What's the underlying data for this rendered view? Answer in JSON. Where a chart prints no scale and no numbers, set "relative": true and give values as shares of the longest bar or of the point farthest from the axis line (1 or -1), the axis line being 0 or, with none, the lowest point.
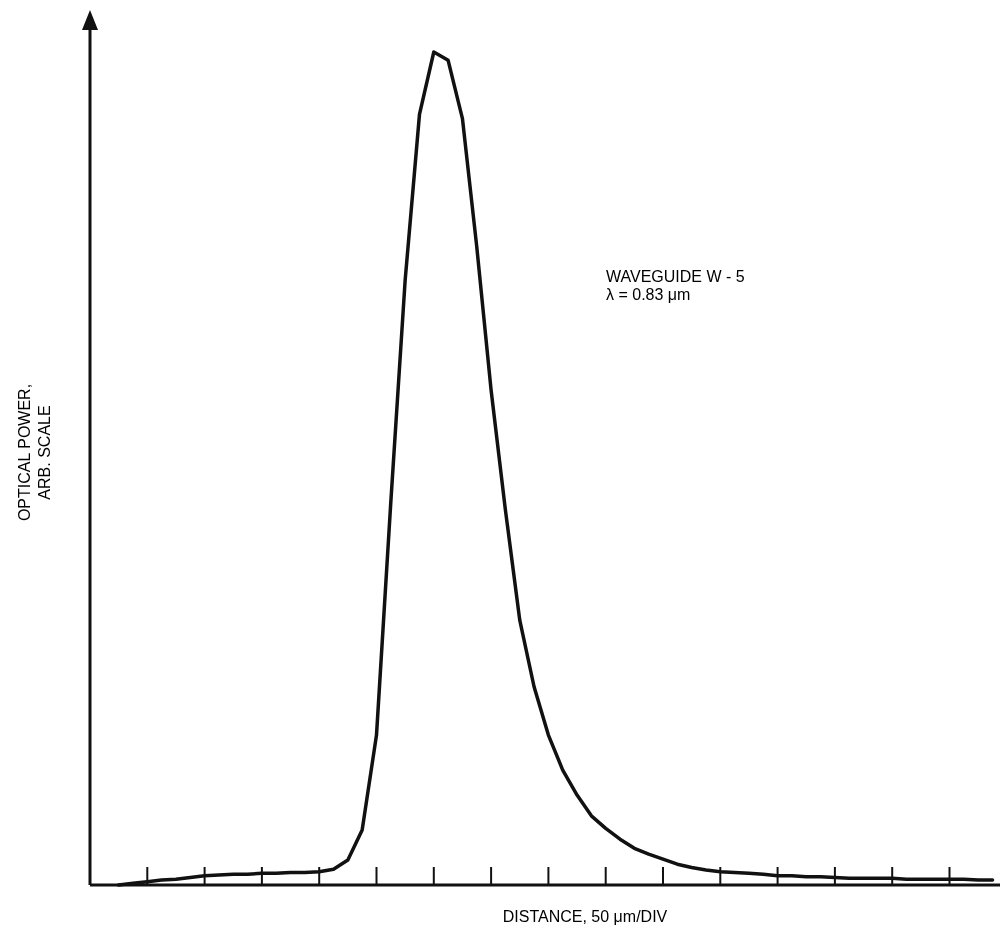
{
  "chart_data": {
    "type": "line",
    "relative": true,
    "xlabel": "DISTANCE, 50 μm/DIV",
    "ylabel": "OPTICAL POWER, ARB. SCALE",
    "annotations": [
      "WAVEGUIDE W - 5",
      "λ = 0.83 μm"
    ],
    "line_style": "solid",
    "categories": [
      null,
      null,
      null,
      null,
      null,
      null,
      null,
      null,
      null,
      null,
      null,
      null,
      null,
      null,
      null,
      null,
      null,
      null,
      null,
      null,
      null,
      null,
      null,
      null,
      null,
      null,
      null,
      null,
      null,
      null,
      null,
      null,
      null,
      null,
      null,
      null,
      null,
      null,
      null,
      null,
      null,
      null,
      null,
      null,
      null,
      null,
      null,
      null,
      null,
      null,
      null,
      null,
      null,
      null,
      null,
      null,
      null,
      null,
      null,
      null,
      null,
      null
    ],
    "series": [
      {
        "color": "#111111",
        "values": [
          0,
          0.002,
          0.004,
          0.006,
          0.007,
          0.009,
          0.011,
          0.012,
          0.013,
          0.013,
          0.014,
          0.014,
          0.015,
          0.015,
          0.016,
          0.019,
          0.03,
          0.066,
          0.18,
          0.46,
          0.726,
          0.925,
          1,
          0.99,
          0.92,
          0.766,
          0.594,
          0.45,
          0.318,
          0.238,
          0.18,
          0.138,
          0.108,
          0.083,
          0.068,
          0.055,
          0.044,
          0.037,
          0.031,
          0.025,
          0.021,
          0.018,
          0.016,
          0.015,
          0.014,
          0.013,
          0.011,
          0.011,
          0.01,
          0.01,
          0.009,
          0.008,
          0.008,
          0.008,
          0.008,
          0.007,
          0.007,
          0.007,
          0.007,
          0.007,
          0.006,
          0.006
        ]
      }
    ]
  }
}
